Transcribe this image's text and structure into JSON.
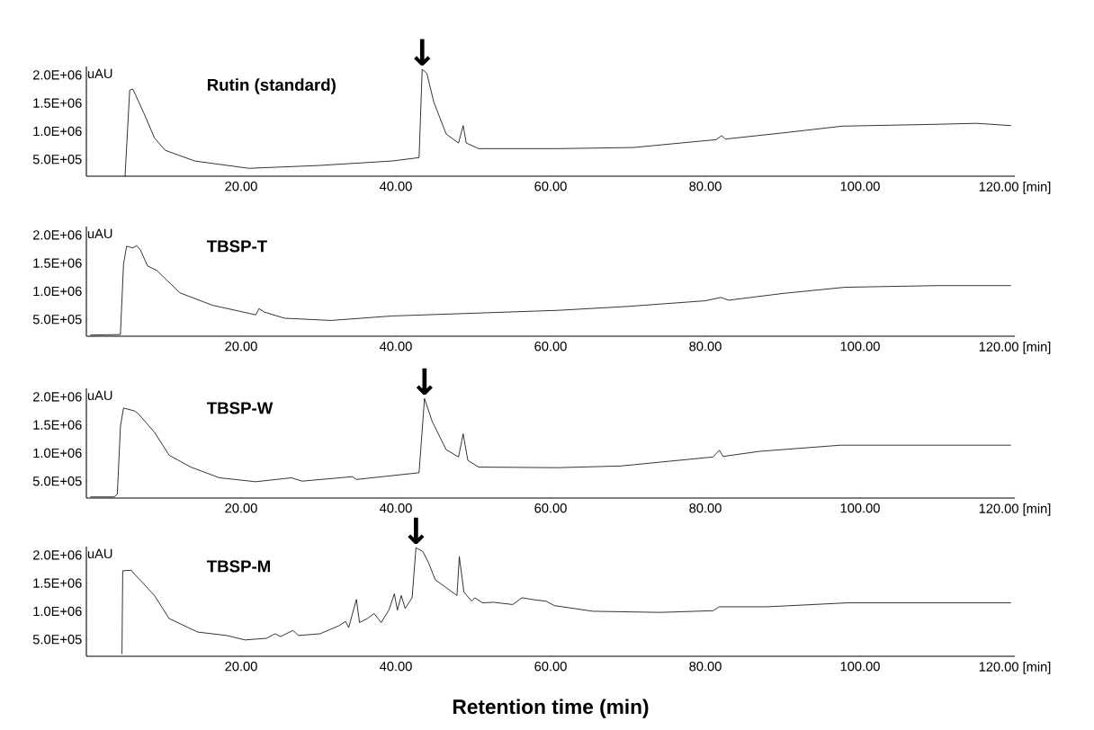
{
  "chart_data": [
    {
      "type": "line",
      "title": "Rutin (standard)",
      "ylabel": "uAU",
      "color": "#000000",
      "x": [
        5.0,
        5.6,
        6.0,
        7.4,
        8.8,
        10.2,
        14,
        21,
        30,
        39.5,
        43,
        43.4,
        44,
        44.9,
        46.5,
        48.1,
        48.7,
        49.1,
        50.7,
        61,
        70.7,
        81.4,
        82.1,
        82.6,
        90.7,
        97.7,
        109,
        115,
        119.5
      ],
      "values": [
        200000,
        1730000,
        1750000,
        1330000,
        880000,
        660000,
        470000,
        340000,
        390000,
        470000,
        530000,
        2100000,
        2030000,
        1520000,
        950000,
        790000,
        1100000,
        790000,
        690000,
        690000,
        710000,
        850000,
        920000,
        860000,
        980000,
        1090000,
        1120000,
        1140000,
        1100000
      ],
      "xlim": [
        0,
        120
      ],
      "ylim": [
        200000,
        2150000
      ],
      "xticks": [
        {
          "value": 20,
          "label": "20.00"
        },
        {
          "value": 40,
          "label": "40.00"
        },
        {
          "value": 60,
          "label": "60.00"
        },
        {
          "value": 80,
          "label": "80.00"
        },
        {
          "value": 100,
          "label": "100.00"
        },
        {
          "value": 120,
          "label": "120.00 [min]"
        }
      ],
      "yticks": [
        {
          "value": 500000,
          "label": "5.0E+05"
        },
        {
          "value": 1000000,
          "label": "1.0E+06"
        },
        {
          "value": 1500000,
          "label": "1.5E+06"
        },
        {
          "value": 2000000,
          "label": "2.0E+06"
        }
      ],
      "annotations": [
        {
          "text": "↓",
          "x": 43.4,
          "y": 2100000
        }
      ]
    },
    {
      "type": "line",
      "title": "TBSP-T",
      "ylabel": "uAU",
      "color": "#000000",
      "x": [
        0.5,
        4.4,
        4.8,
        5.2,
        6.0,
        6.5,
        7.0,
        7.9,
        9.1,
        12.1,
        16.3,
        21.9,
        22.3,
        23.0,
        25.6,
        31.6,
        39.5,
        61,
        70,
        80,
        82,
        83,
        90,
        98,
        110,
        119.5
      ],
      "values": [
        220000,
        230000,
        1480000,
        1800000,
        1770000,
        1810000,
        1730000,
        1450000,
        1370000,
        970000,
        750000,
        580000,
        690000,
        630000,
        520000,
        480000,
        560000,
        660000,
        730000,
        830000,
        890000,
        840000,
        960000,
        1070000,
        1100000,
        1100000
      ],
      "xlim": [
        0,
        120
      ],
      "ylim": [
        200000,
        2150000
      ],
      "xticks": [
        {
          "value": 20,
          "label": "20.00"
        },
        {
          "value": 40,
          "label": "40.00"
        },
        {
          "value": 60,
          "label": "60.00"
        },
        {
          "value": 80,
          "label": "80.00"
        },
        {
          "value": 100,
          "label": "100.00"
        },
        {
          "value": 120,
          "label": "120.00 [min]"
        }
      ],
      "yticks": [
        {
          "value": 500000,
          "label": "5.0E+05"
        },
        {
          "value": 1000000,
          "label": "1.0E+06"
        },
        {
          "value": 1500000,
          "label": "1.5E+06"
        },
        {
          "value": 2000000,
          "label": "2.0E+06"
        }
      ]
    },
    {
      "type": "line",
      "title": "TBSP-W",
      "ylabel": "uAU",
      "color": "#000000",
      "x": [
        0.5,
        3.6,
        4.0,
        4.4,
        4.8,
        6.2,
        6.7,
        8.8,
        10.7,
        13.5,
        17.2,
        21.9,
        26.5,
        27.9,
        34.4,
        34.9,
        43,
        43.7,
        44.7,
        46.5,
        48.1,
        48.7,
        49.3,
        50.7,
        61,
        69.1,
        81,
        81.8,
        82.3,
        87,
        97.5,
        108.5,
        119.5
      ],
      "values": [
        220000,
        220000,
        270000,
        1470000,
        1800000,
        1750000,
        1700000,
        1370000,
        960000,
        750000,
        560000,
        490000,
        560000,
        500000,
        580000,
        530000,
        650000,
        1970000,
        1560000,
        1060000,
        930000,
        1340000,
        870000,
        750000,
        740000,
        770000,
        930000,
        1050000,
        940000,
        1030000,
        1140000,
        1140000,
        1140000
      ],
      "xlim": [
        0,
        120
      ],
      "ylim": [
        200000,
        2150000
      ],
      "xticks": [
        {
          "value": 20,
          "label": "20.00"
        },
        {
          "value": 40,
          "label": "40.00"
        },
        {
          "value": 60,
          "label": "60.00"
        },
        {
          "value": 80,
          "label": "80.00"
        },
        {
          "value": 100,
          "label": "100.00"
        },
        {
          "value": 120,
          "label": "120.00 [min]"
        }
      ],
      "yticks": [
        {
          "value": 500000,
          "label": "5.0E+05"
        },
        {
          "value": 1000000,
          "label": "1.0E+06"
        },
        {
          "value": 1500000,
          "label": "1.5E+06"
        },
        {
          "value": 2000000,
          "label": "2.0E+06"
        }
      ],
      "annotations": [
        {
          "text": "↓",
          "x": 43.7,
          "y": 1970000
        }
      ]
    },
    {
      "type": "line",
      "title": "TBSP-M",
      "ylabel": "uAU",
      "xlabel": "Retention time (min)",
      "color": "#000000",
      "x": [
        4.6,
        4.7,
        5.8,
        6.3,
        8.8,
        10.7,
        14.4,
        18.1,
        20.5,
        23.3,
        24.4,
        25.1,
        26.7,
        27.4,
        30.2,
        32.6,
        33.5,
        33.9,
        34.9,
        35.3,
        36.3,
        37.2,
        38.1,
        39.1,
        39.8,
        40.2,
        40.7,
        41.2,
        42.1,
        42.6,
        43.5,
        44.2,
        45.1,
        47,
        47.9,
        48.2,
        48.8,
        49.8,
        50.2,
        51.2,
        52.6,
        55.1,
        56.3,
        58.1,
        59.4,
        60.5,
        65.5,
        74.2,
        81,
        81.8,
        88,
        98.4,
        119.5
      ],
      "values": [
        240000,
        1720000,
        1730000,
        1650000,
        1280000,
        870000,
        630000,
        570000,
        490000,
        520000,
        600000,
        550000,
        660000,
        570000,
        600000,
        740000,
        820000,
        710000,
        1210000,
        800000,
        870000,
        960000,
        800000,
        1020000,
        1310000,
        1020000,
        1280000,
        1050000,
        1240000,
        2130000,
        2060000,
        1870000,
        1560000,
        1370000,
        1280000,
        1970000,
        1340000,
        1180000,
        1240000,
        1150000,
        1160000,
        1120000,
        1240000,
        1200000,
        1180000,
        1100000,
        1000000,
        980000,
        1010000,
        1080000,
        1080000,
        1150000,
        1150000
      ],
      "xlim": [
        0,
        120
      ],
      "ylim": [
        200000,
        2150000
      ],
      "xticks": [
        {
          "value": 20,
          "label": "20.00"
        },
        {
          "value": 40,
          "label": "40.00"
        },
        {
          "value": 60,
          "label": "60.00"
        },
        {
          "value": 80,
          "label": "80.00"
        },
        {
          "value": 100,
          "label": "100.00"
        },
        {
          "value": 120,
          "label": "120.00 [min]"
        }
      ],
      "yticks": [
        {
          "value": 500000,
          "label": "5.0E+05"
        },
        {
          "value": 1000000,
          "label": "1.0E+06"
        },
        {
          "value": 1500000,
          "label": "1.5E+06"
        },
        {
          "value": 2000000,
          "label": "2.0E+06"
        }
      ],
      "annotations": [
        {
          "text": "↓",
          "x": 42.6,
          "y": 2130000
        }
      ]
    }
  ]
}
